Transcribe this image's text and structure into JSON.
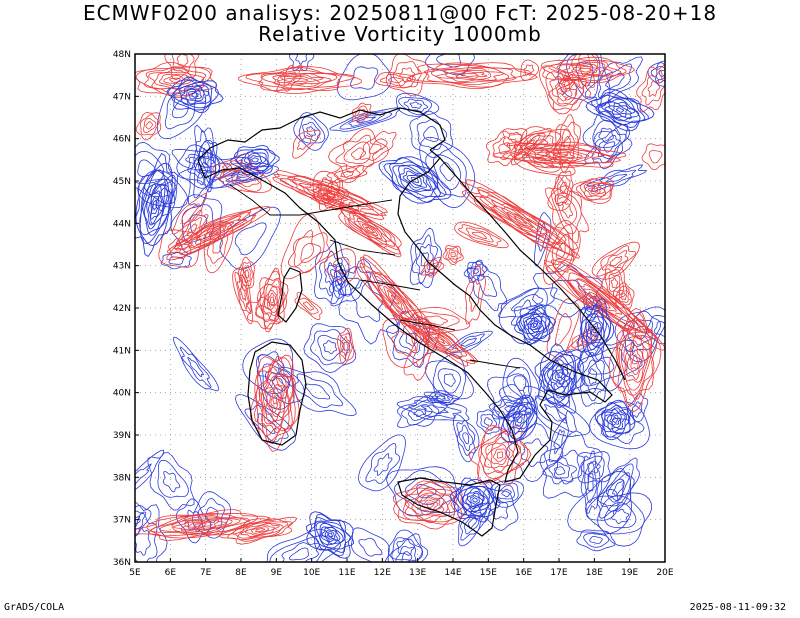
{
  "header": {
    "title_line1": "ECMWF0200 analisys: 20250811@00 FcT: 2025-08-20+18",
    "title_line2": "Relative Vorticity 1000mb"
  },
  "footer": {
    "left": "GrADS/COLA",
    "right": "2025-08-11-09:32"
  },
  "map": {
    "lon_range": [
      5,
      20
    ],
    "lat_range": [
      36,
      48
    ],
    "lon_ticks": [
      "5E",
      "6E",
      "7E",
      "8E",
      "9E",
      "10E",
      "11E",
      "12E",
      "13E",
      "14E",
      "15E",
      "16E",
      "17E",
      "18E",
      "19E",
      "20E"
    ],
    "lat_ticks": [
      "36N",
      "37N",
      "38N",
      "39N",
      "40N",
      "41N",
      "42N",
      "43N",
      "44N",
      "45N",
      "46N",
      "47N",
      "48N"
    ],
    "colors": {
      "positive_contours": "#ee3a3a",
      "negative_contours": "#2b3cdc",
      "coastline": "#000000",
      "grid": "#999999"
    },
    "grid": true
  }
}
